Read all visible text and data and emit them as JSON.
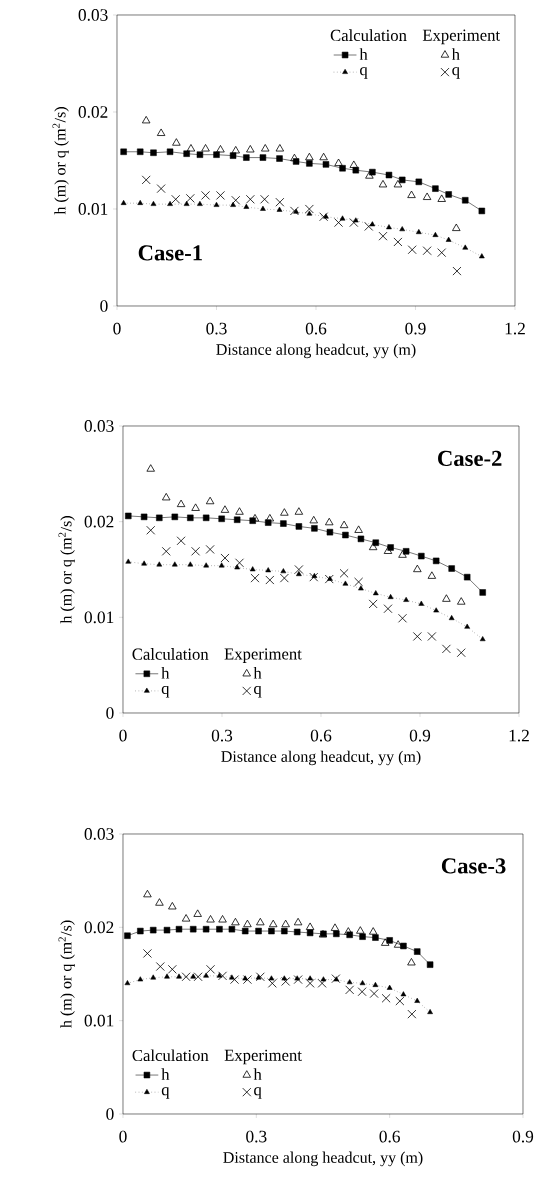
{
  "chart_data": [
    {
      "type": "line",
      "title": "Case-1",
      "xlabel": "Distance along headcut, yy (m)",
      "ylabel": "h (m) or q (m$^{2}$/s)",
      "xlim": [
        0,
        1.2
      ],
      "ylim": [
        0,
        0.03
      ],
      "xticks": [
        0,
        0.3,
        0.6,
        0.9,
        1.2
      ],
      "yticks": [
        0,
        0.01,
        0.02,
        0.03
      ],
      "legend": "top right",
      "annotations": [
        "Calculation",
        "Experiment"
      ],
      "series": [
        {
          "name": "h",
          "color": "#000000",
          "marker": "square",
          "line_style": "solid",
          "x": [
            0.02,
            0.07,
            0.11,
            0.16,
            0.21,
            0.25,
            0.3,
            0.35,
            0.39,
            0.44,
            0.49,
            0.54,
            0.58,
            0.63,
            0.68,
            0.72,
            0.77,
            0.82,
            0.86,
            0.91,
            0.96,
            1.0,
            1.05,
            1.1
          ],
          "values": [
            0.0159,
            0.0159,
            0.0158,
            0.0159,
            0.0157,
            0.0156,
            0.0156,
            0.0155,
            0.0153,
            0.0153,
            0.0152,
            0.0149,
            0.0147,
            0.0146,
            0.0142,
            0.014,
            0.0138,
            0.0135,
            0.013,
            0.0128,
            0.0121,
            0.0115,
            0.0109,
            0.0098
          ]
        },
        {
          "name": "q",
          "color": "#000000",
          "marker": "triangle",
          "line_style": "dotted",
          "x": [
            0.02,
            0.07,
            0.11,
            0.16,
            0.21,
            0.25,
            0.3,
            0.35,
            0.39,
            0.44,
            0.49,
            0.54,
            0.58,
            0.63,
            0.68,
            0.72,
            0.77,
            0.82,
            0.86,
            0.91,
            0.96,
            1.0,
            1.05,
            1.1
          ],
          "values": [
            0.0106,
            0.0106,
            0.0105,
            0.0105,
            0.0105,
            0.0105,
            0.0104,
            0.0104,
            0.0102,
            0.01,
            0.0099,
            0.0097,
            0.0095,
            0.0092,
            0.009,
            0.0088,
            0.0084,
            0.0081,
            0.0079,
            0.0076,
            0.0073,
            0.0068,
            0.006,
            0.0051
          ]
        },
        {
          "name": "h",
          "type": "scatter",
          "color": "#000000",
          "marker": "triangle",
          "x": [
            0.088,
            0.133,
            0.179,
            0.223,
            0.267,
            0.312,
            0.358,
            0.402,
            0.447,
            0.491,
            0.535,
            0.58,
            0.623,
            0.668,
            0.714,
            0.761,
            0.802,
            0.847,
            0.888,
            0.935,
            0.979,
            1.023
          ],
          "values": [
            0.0191,
            0.0178,
            0.0168,
            0.0162,
            0.0162,
            0.0161,
            0.016,
            0.0161,
            0.0162,
            0.0162,
            0.0152,
            0.0153,
            0.0153,
            0.0147,
            0.0145,
            0.0134,
            0.0125,
            0.0125,
            0.0114,
            0.0112,
            0.011,
            0.008
          ]
        },
        {
          "name": "q",
          "type": "scatter",
          "color": "#000000",
          "marker": "cross",
          "x": [
            0.088,
            0.133,
            0.177,
            0.221,
            0.267,
            0.312,
            0.358,
            0.402,
            0.445,
            0.491,
            0.535,
            0.58,
            0.623,
            0.668,
            0.714,
            0.759,
            0.802,
            0.847,
            0.89,
            0.935,
            0.979,
            1.025
          ],
          "values": [
            0.013,
            0.0121,
            0.011,
            0.0111,
            0.0114,
            0.0114,
            0.0109,
            0.011,
            0.011,
            0.0107,
            0.0098,
            0.01,
            0.0092,
            0.0086,
            0.0086,
            0.0082,
            0.0072,
            0.0066,
            0.0058,
            0.0057,
            0.0055,
            0.0036
          ]
        }
      ]
    },
    {
      "type": "line",
      "title": "Case-2",
      "xlabel": "Distance along headcut, yy (m)",
      "ylabel": "h (m) or q (m$^{2}$/s)",
      "xlim": [
        0,
        1.2
      ],
      "ylim": [
        0,
        0.03
      ],
      "xticks": [
        0,
        0.3,
        0.6,
        0.9,
        1.2
      ],
      "yticks": [
        0,
        0.01,
        0.02,
        0.03
      ],
      "legend": "bottom left",
      "annotations": [
        "Calculation",
        "Experiment"
      ],
      "series": [
        {
          "name": "h",
          "color": "#000000",
          "marker": "square",
          "line_style": "solid",
          "x": [
            0.016,
            0.064,
            0.11,
            0.157,
            0.204,
            0.252,
            0.299,
            0.346,
            0.393,
            0.44,
            0.486,
            0.533,
            0.58,
            0.627,
            0.674,
            0.721,
            0.766,
            0.811,
            0.858,
            0.904,
            0.949,
            0.996,
            1.043,
            1.09
          ],
          "values": [
            0.0206,
            0.0205,
            0.0204,
            0.0205,
            0.0204,
            0.0204,
            0.0203,
            0.0202,
            0.0201,
            0.0199,
            0.0198,
            0.0195,
            0.0193,
            0.0189,
            0.0186,
            0.0182,
            0.0178,
            0.0173,
            0.0169,
            0.0164,
            0.0159,
            0.0151,
            0.0142,
            0.0126
          ]
        },
        {
          "name": "q",
          "color": "#000000",
          "marker": "triangle",
          "line_style": "dotted",
          "x": [
            0.016,
            0.064,
            0.11,
            0.157,
            0.204,
            0.252,
            0.299,
            0.346,
            0.393,
            0.44,
            0.486,
            0.533,
            0.58,
            0.627,
            0.674,
            0.721,
            0.766,
            0.811,
            0.858,
            0.904,
            0.949,
            0.996,
            1.043,
            1.09
          ],
          "values": [
            0.0158,
            0.0156,
            0.0155,
            0.0155,
            0.0155,
            0.0154,
            0.0154,
            0.0152,
            0.015,
            0.0149,
            0.0148,
            0.0145,
            0.0143,
            0.014,
            0.0135,
            0.013,
            0.0125,
            0.0121,
            0.0118,
            0.0114,
            0.0107,
            0.0099,
            0.009,
            0.0077
          ]
        },
        {
          "name": "h",
          "type": "scatter",
          "color": "#000000",
          "marker": "triangle",
          "x": [
            0.084,
            0.131,
            0.176,
            0.22,
            0.264,
            0.309,
            0.353,
            0.4,
            0.445,
            0.489,
            0.533,
            0.578,
            0.625,
            0.67,
            0.714,
            0.758,
            0.803,
            0.847,
            0.892,
            0.936,
            0.98,
            1.025
          ],
          "values": [
            0.0255,
            0.0225,
            0.0218,
            0.0214,
            0.0221,
            0.0212,
            0.021,
            0.0203,
            0.0203,
            0.0209,
            0.021,
            0.0201,
            0.0199,
            0.0196,
            0.0191,
            0.0173,
            0.0169,
            0.0165,
            0.015,
            0.0143,
            0.0119,
            0.0116
          ]
        },
        {
          "name": "q",
          "type": "scatter",
          "color": "#000000",
          "marker": "cross",
          "x": [
            0.084,
            0.131,
            0.176,
            0.22,
            0.264,
            0.309,
            0.353,
            0.4,
            0.445,
            0.489,
            0.533,
            0.578,
            0.625,
            0.67,
            0.714,
            0.758,
            0.803,
            0.847,
            0.892,
            0.936,
            0.98,
            1.025
          ],
          "values": [
            0.0191,
            0.0169,
            0.018,
            0.0169,
            0.0171,
            0.0162,
            0.0157,
            0.0141,
            0.0139,
            0.0141,
            0.015,
            0.0142,
            0.014,
            0.0146,
            0.0137,
            0.0114,
            0.0109,
            0.0099,
            0.008,
            0.008,
            0.0067,
            0.0063
          ]
        }
      ]
    },
    {
      "type": "line",
      "title": "Case-3",
      "xlabel": "Distance along headcut, yy (m)",
      "ylabel": "h (m) or q (m$^{2}$/s)",
      "xlim": [
        0,
        0.9
      ],
      "ylim": [
        0,
        0.03
      ],
      "xticks": [
        0,
        0.3,
        0.6,
        0.9
      ],
      "yticks": [
        0,
        0.01,
        0.02,
        0.03
      ],
      "legend": "bottom left",
      "annotations": [
        "Calculation",
        "Experiment"
      ],
      "series": [
        {
          "name": "h",
          "color": "#000000",
          "marker": "square",
          "line_style": "solid",
          "x": [
            0.01,
            0.039,
            0.068,
            0.099,
            0.126,
            0.158,
            0.187,
            0.217,
            0.245,
            0.275,
            0.305,
            0.334,
            0.363,
            0.392,
            0.421,
            0.451,
            0.48,
            0.51,
            0.539,
            0.568,
            0.6,
            0.631,
            0.662,
            0.691
          ],
          "values": [
            0.0191,
            0.0196,
            0.0197,
            0.0197,
            0.0198,
            0.0198,
            0.0198,
            0.0198,
            0.0198,
            0.0196,
            0.0196,
            0.0196,
            0.0196,
            0.0195,
            0.0194,
            0.0193,
            0.0193,
            0.0192,
            0.019,
            0.0189,
            0.0186,
            0.018,
            0.0174,
            0.016
          ]
        },
        {
          "name": "q",
          "color": "#000000",
          "marker": "triangle",
          "line_style": "dotted",
          "x": [
            0.01,
            0.039,
            0.068,
            0.099,
            0.126,
            0.158,
            0.187,
            0.217,
            0.245,
            0.275,
            0.305,
            0.334,
            0.363,
            0.392,
            0.421,
            0.451,
            0.48,
            0.51,
            0.539,
            0.568,
            0.6,
            0.631,
            0.662,
            0.691
          ],
          "values": [
            0.014,
            0.0144,
            0.0146,
            0.0147,
            0.0147,
            0.0147,
            0.0148,
            0.0148,
            0.0146,
            0.0145,
            0.0146,
            0.0145,
            0.0145,
            0.0145,
            0.0145,
            0.0144,
            0.0144,
            0.0141,
            0.014,
            0.0138,
            0.0135,
            0.0128,
            0.0121,
            0.0109
          ]
        },
        {
          "name": "h",
          "type": "scatter",
          "color": "#000000",
          "marker": "triangle",
          "x": [
            0.055,
            0.082,
            0.111,
            0.142,
            0.168,
            0.197,
            0.224,
            0.253,
            0.28,
            0.309,
            0.338,
            0.366,
            0.394,
            0.421,
            0.45,
            0.477,
            0.507,
            0.534,
            0.563,
            0.59,
            0.619,
            0.649
          ],
          "values": [
            0.0235,
            0.0226,
            0.0222,
            0.0209,
            0.0214,
            0.0208,
            0.0208,
            0.0205,
            0.0203,
            0.0205,
            0.0203,
            0.0203,
            0.0205,
            0.02,
            0.0192,
            0.0199,
            0.0195,
            0.0196,
            0.0195,
            0.0183,
            0.0181,
            0.0162
          ]
        },
        {
          "name": "q",
          "type": "scatter",
          "color": "#000000",
          "marker": "cross",
          "x": [
            0.055,
            0.084,
            0.111,
            0.142,
            0.169,
            0.197,
            0.224,
            0.251,
            0.28,
            0.309,
            0.336,
            0.366,
            0.394,
            0.421,
            0.448,
            0.479,
            0.51,
            0.538,
            0.565,
            0.592,
            0.623,
            0.65
          ],
          "values": [
            0.0172,
            0.0158,
            0.0155,
            0.0147,
            0.0147,
            0.0155,
            0.0148,
            0.0144,
            0.0144,
            0.0147,
            0.014,
            0.0142,
            0.0144,
            0.014,
            0.014,
            0.0145,
            0.0133,
            0.0131,
            0.0129,
            0.0124,
            0.0121,
            0.0107
          ]
        }
      ]
    }
  ]
}
